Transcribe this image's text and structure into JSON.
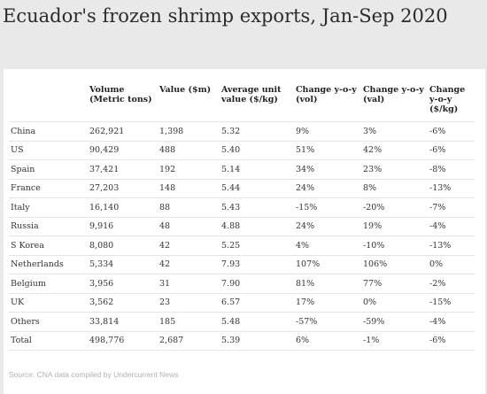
{
  "title": "Ecuador's frozen shrimp exports, Jan-Sep 2020",
  "source": "Source: CNA data compiled by Undercurrent News",
  "chart_data": {
    "type": "table",
    "columns": [
      "",
      "Volume (Metric tons)",
      "Value ($m)",
      "Average unit value ($/kg)",
      "Change y-o-y (vol)",
      "Change y-o-y (val)",
      "Change y-o-y ($/kg)"
    ],
    "rows": [
      [
        "China",
        "262,921",
        "1,398",
        "5.32",
        "9%",
        "3%",
        "-6%"
      ],
      [
        "US",
        "90,429",
        "488",
        "5.40",
        "51%",
        "42%",
        "-6%"
      ],
      [
        "Spain",
        "37,421",
        "192",
        "5.14",
        "34%",
        "23%",
        "-8%"
      ],
      [
        "France",
        "27,203",
        "148",
        "5.44",
        "24%",
        "8%",
        "-13%"
      ],
      [
        "Italy",
        "16,140",
        "88",
        "5.43",
        "-15%",
        "-20%",
        "-7%"
      ],
      [
        "Russia",
        "9,916",
        "48",
        "4.88",
        "24%",
        "19%",
        "-4%"
      ],
      [
        "S Korea",
        "8,080",
        "42",
        "5.25",
        "4%",
        "-10%",
        "-13%"
      ],
      [
        "Netherlands",
        "5,334",
        "42",
        "7.93",
        "107%",
        "106%",
        "0%"
      ],
      [
        "Belgium",
        "3,956",
        "31",
        "7.90",
        "81%",
        "77%",
        "-2%"
      ],
      [
        "UK",
        "3,562",
        "23",
        "6.57",
        "17%",
        "0%",
        "-15%"
      ],
      [
        "Others",
        "33,814",
        "185",
        "5.48",
        "-57%",
        "-59%",
        "-4%"
      ],
      [
        "Total",
        "498,776",
        "2,687",
        "5.39",
        "6%",
        "-1%",
        "-6%"
      ]
    ]
  }
}
